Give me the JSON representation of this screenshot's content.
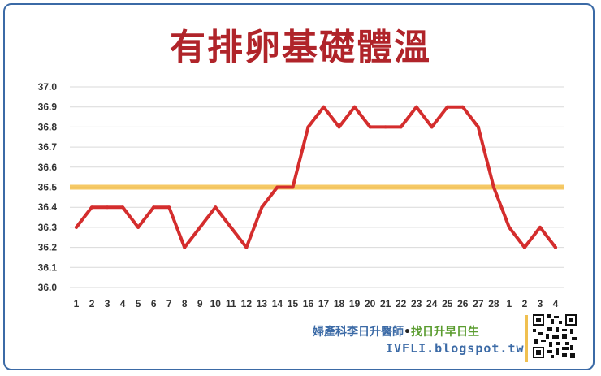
{
  "title": "有排卵基礎體溫",
  "footer": {
    "credit_a": "婦產科李日升醫師",
    "credit_dot": "•",
    "credit_b": "找日升早日生",
    "url": "IVFLI.blogspot.tw",
    "qr_icon": "qr-code-icon"
  },
  "colors": {
    "title": "#b0242a",
    "line": "#d42d2d",
    "threshold": "#f5c04a",
    "frame": "#3b6aa6",
    "credit_a": "#3b6aa6",
    "credit_b": "#5a9c2f"
  },
  "chart_data": {
    "type": "line",
    "title": "有排卵基礎體溫",
    "xlabel": "",
    "ylabel": "",
    "categories": [
      "1",
      "2",
      "3",
      "4",
      "5",
      "6",
      "7",
      "8",
      "9",
      "10",
      "11",
      "12",
      "13",
      "14",
      "15",
      "16",
      "17",
      "18",
      "19",
      "20",
      "21",
      "22",
      "23",
      "24",
      "25",
      "26",
      "27",
      "28",
      "1",
      "2",
      "3",
      "4"
    ],
    "yticks": [
      "37.0",
      "36.9",
      "36.8",
      "36.7",
      "36.6",
      "36.5",
      "36.4",
      "36.3",
      "36.2",
      "36.1",
      "36.0"
    ],
    "ylim": [
      36.0,
      37.0
    ],
    "grid": true,
    "series": [
      {
        "values": [
          36.3,
          36.4,
          36.4,
          36.4,
          36.3,
          36.4,
          36.4,
          36.2,
          36.3,
          36.4,
          36.3,
          36.2,
          36.4,
          36.5,
          36.5,
          36.8,
          36.9,
          36.8,
          36.9,
          36.8,
          36.8,
          36.8,
          36.9,
          36.8,
          36.9,
          36.9,
          36.8,
          36.5,
          36.3,
          36.2,
          36.3,
          36.2
        ]
      }
    ],
    "reference_line": {
      "y": 36.5
    }
  }
}
